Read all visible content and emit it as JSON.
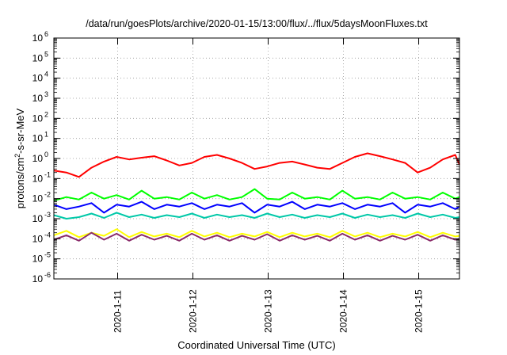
{
  "chart_data": {
    "type": "line",
    "title": "/data/run/goesPlots/archive/2020-01-15/13:00/flux/../flux/5daysMoonFluxes.txt",
    "xlabel": "Coordinated Universal Time (UTC)",
    "ylabel": "protons/cm²-s-sr-MeV",
    "yscale": "log",
    "ylim": [
      1e-06,
      1000000.0
    ],
    "xlim": [
      "2020-01-10T03:40",
      "2020-01-15T13:00"
    ],
    "grid": true,
    "legend": "none",
    "x_tick_labels": [
      "2020-1-11",
      "2020-1-12",
      "2020-1-13",
      "2020-1-14",
      "2020-1-15"
    ],
    "y_tick_labels": [
      {
        "base": "10",
        "exp": "-6"
      },
      {
        "base": "10",
        "exp": "-5"
      },
      {
        "base": "10",
        "exp": "-4"
      },
      {
        "base": "10",
        "exp": "-3"
      },
      {
        "base": "10",
        "exp": "-2"
      },
      {
        "base": "10",
        "exp": "-1"
      },
      {
        "base": "10",
        "exp": "0"
      },
      {
        "base": "10",
        "exp": "1"
      },
      {
        "base": "10",
        "exp": "2"
      },
      {
        "base": "10",
        "exp": "3"
      },
      {
        "base": "10",
        "exp": "4"
      },
      {
        "base": "10",
        "exp": "5"
      },
      {
        "base": "10",
        "exp": "6"
      }
    ],
    "x": [
      "2020-01-10T03:40",
      "2020-01-10T07:40",
      "2020-01-10T11:40",
      "2020-01-10T15:40",
      "2020-01-10T19:40",
      "2020-01-10T23:40",
      "2020-01-11T03:40",
      "2020-01-11T07:40",
      "2020-01-11T11:40",
      "2020-01-11T15:40",
      "2020-01-11T19:40",
      "2020-01-11T23:40",
      "2020-01-12T03:40",
      "2020-01-12T07:40",
      "2020-01-12T11:40",
      "2020-01-12T15:40",
      "2020-01-12T19:40",
      "2020-01-12T23:40",
      "2020-01-13T03:40",
      "2020-01-13T07:40",
      "2020-01-13T11:40",
      "2020-01-13T15:40",
      "2020-01-13T19:40",
      "2020-01-13T23:40",
      "2020-01-14T03:40",
      "2020-01-14T07:40",
      "2020-01-14T11:40",
      "2020-01-14T15:40",
      "2020-01-14T19:40",
      "2020-01-14T23:40",
      "2020-01-15T03:40",
      "2020-01-15T07:40",
      "2020-01-15T11:40",
      "2020-01-15T13:00"
    ],
    "series": [
      {
        "color": "#ff0000",
        "values": [
          0.25,
          0.2,
          0.12,
          0.35,
          0.7,
          1.2,
          0.9,
          1.1,
          1.3,
          0.8,
          0.45,
          0.6,
          1.2,
          1.5,
          1.0,
          0.6,
          0.3,
          0.4,
          0.6,
          0.7,
          0.5,
          0.35,
          0.3,
          0.6,
          1.2,
          1.8,
          1.3,
          0.9,
          0.6,
          0.2,
          0.35,
          0.9,
          1.5,
          0.5
        ]
      },
      {
        "color": "#00ff00",
        "values": [
          0.008,
          0.012,
          0.009,
          0.02,
          0.01,
          0.015,
          0.009,
          0.025,
          0.01,
          0.012,
          0.009,
          0.02,
          0.01,
          0.015,
          0.009,
          0.012,
          0.03,
          0.01,
          0.009,
          0.02,
          0.01,
          0.012,
          0.009,
          0.025,
          0.01,
          0.012,
          0.009,
          0.02,
          0.01,
          0.012,
          0.009,
          0.02,
          0.01,
          0.012
        ]
      },
      {
        "color": "#0000ff",
        "values": [
          0.005,
          0.003,
          0.004,
          0.006,
          0.002,
          0.005,
          0.004,
          0.007,
          0.003,
          0.005,
          0.004,
          0.006,
          0.003,
          0.005,
          0.004,
          0.006,
          0.002,
          0.005,
          0.004,
          0.007,
          0.003,
          0.005,
          0.004,
          0.006,
          0.003,
          0.005,
          0.004,
          0.006,
          0.002,
          0.005,
          0.004,
          0.006,
          0.003,
          0.004
        ]
      },
      {
        "color": "#00c8a8",
        "values": [
          0.0015,
          0.001,
          0.0012,
          0.0018,
          0.0011,
          0.002,
          0.0012,
          0.0016,
          0.0011,
          0.0015,
          0.0012,
          0.0018,
          0.0011,
          0.0016,
          0.0012,
          0.0015,
          0.0011,
          0.0018,
          0.0012,
          0.0016,
          0.0011,
          0.0015,
          0.0012,
          0.0018,
          0.0011,
          0.0016,
          0.0012,
          0.0015,
          0.0011,
          0.0018,
          0.0012,
          0.0016,
          0.0011,
          0.0012
        ]
      },
      {
        "color": "#ffff00",
        "values": [
          0.00015,
          0.00025,
          0.00012,
          0.0002,
          0.00014,
          0.0003,
          0.00012,
          0.00022,
          0.00013,
          0.00018,
          0.00012,
          0.00025,
          0.00013,
          0.0002,
          0.00012,
          0.00018,
          0.00013,
          0.00022,
          0.00012,
          0.0002,
          0.00013,
          0.00018,
          0.00012,
          0.00025,
          0.00013,
          0.0002,
          0.00012,
          0.00018,
          0.00013,
          0.00022,
          0.00012,
          0.0002,
          0.00013,
          0.00014
        ]
      },
      {
        "color": "#8b2d6b",
        "values": [
          9e-05,
          0.00015,
          8e-05,
          0.0002,
          9e-05,
          0.00018,
          8e-05,
          0.00016,
          9e-05,
          0.00014,
          8e-05,
          0.00018,
          9e-05,
          0.00015,
          8e-05,
          0.00014,
          9e-05,
          0.00017,
          8e-05,
          0.00015,
          9e-05,
          0.00014,
          8e-05,
          0.00018,
          9e-05,
          0.00015,
          8e-05,
          0.00014,
          9e-05,
          0.00016,
          8e-05,
          0.00015,
          9e-05,
          0.0001
        ]
      }
    ]
  }
}
